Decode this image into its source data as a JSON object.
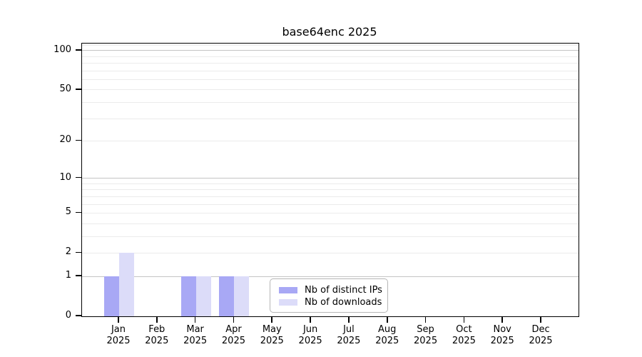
{
  "chart_data": {
    "type": "bar",
    "title": "base64enc 2025",
    "year": "2025",
    "categories": [
      "Jan",
      "Feb",
      "Mar",
      "Apr",
      "May",
      "Jun",
      "Jul",
      "Aug",
      "Sep",
      "Oct",
      "Nov",
      "Dec"
    ],
    "series": [
      {
        "name": "Nb of distinct IPs",
        "color": "#a8a8f5",
        "values": [
          1,
          0,
          1,
          1,
          0,
          0,
          0,
          0,
          0,
          0,
          0,
          0
        ]
      },
      {
        "name": "Nb of downloads",
        "color": "#dcdcf9",
        "values": [
          2,
          0,
          1,
          1,
          0,
          0,
          0,
          0,
          0,
          0,
          0,
          0
        ]
      }
    ],
    "xlabel": "",
    "ylabel": "",
    "y_axis": {
      "scale": "log1p",
      "ticks": [
        0,
        1,
        2,
        5,
        10,
        20,
        50,
        100
      ],
      "max": 113,
      "major_gridlines": [
        1,
        10,
        100
      ],
      "minor_gridlines": [
        2,
        3,
        4,
        5,
        6,
        7,
        8,
        9,
        20,
        30,
        40,
        50,
        60,
        70,
        80,
        90,
        110
      ],
      "major_gridline_color": "#c4c4c4",
      "minor_gridline_color": "#ebebeb"
    },
    "legend_position": "lower center-right inside plot",
    "grid": "horizontal only",
    "frame_color": "#000000",
    "background_color": "#ffffff"
  }
}
